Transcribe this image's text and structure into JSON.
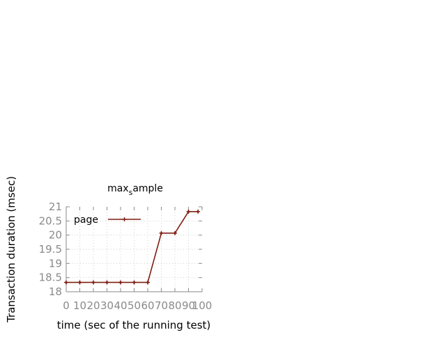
{
  "chart_data": {
    "type": "line",
    "title": "max_sample",
    "title_base": "max",
    "title_sub": "s",
    "title_rest": "ample",
    "xlabel": "time (sec of the running test)",
    "ylabel": "Transaction duration (msec)",
    "xlim": [
      0,
      100
    ],
    "ylim": [
      18,
      21
    ],
    "x_ticks": [
      "0",
      "10",
      "20",
      "30",
      "40",
      "50",
      "60",
      "70",
      "80",
      "90",
      "100"
    ],
    "y_ticks": [
      "18",
      "18.5",
      "19",
      "19.5",
      "20",
      "20.5",
      "21"
    ],
    "grid": true,
    "legend_position": "top-left",
    "series": [
      {
        "name": "page",
        "color": "#7f1d12",
        "x": [
          0,
          10,
          20,
          30,
          40,
          50,
          60,
          70,
          80,
          90,
          97
        ],
        "y": [
          18.33,
          18.33,
          18.33,
          18.33,
          18.33,
          18.33,
          18.33,
          20.07,
          20.07,
          20.83,
          20.83
        ]
      }
    ]
  }
}
